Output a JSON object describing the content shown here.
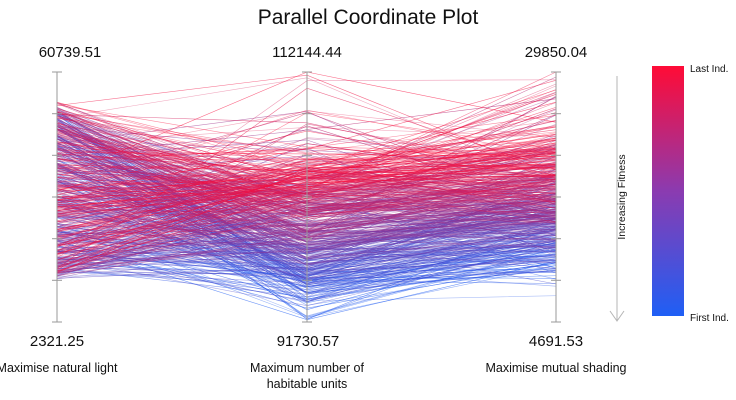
{
  "colors": {
    "first": "#1f5ff5",
    "last": "#ff0b36",
    "axis": "#9a9a9a",
    "arrow": "#b5b5b5"
  },
  "chart_data": {
    "type": "parallel-coordinates",
    "title": "Parallel Coordinate Plot",
    "axes": [
      {
        "label": "Maximise natural light",
        "max_label": "60739.51",
        "min_label": "2321.25",
        "max": 60739.51,
        "min": 2321.25
      },
      {
        "label": "Maximum number of habitable units",
        "max_label": "112144.44",
        "min_label": "91730.57",
        "max": 112144.44,
        "min": 91730.57
      },
      {
        "label": "Maximise mutual shading",
        "max_label": "29850.04",
        "min_label": "4691.53",
        "max": 29850.04,
        "min": 4691.53
      }
    ],
    "colorbar": {
      "top_label": "Last Ind.",
      "bottom_label": "First Ind.",
      "axis_label": "Increasing Fitness"
    },
    "series_description_count": 600
  }
}
